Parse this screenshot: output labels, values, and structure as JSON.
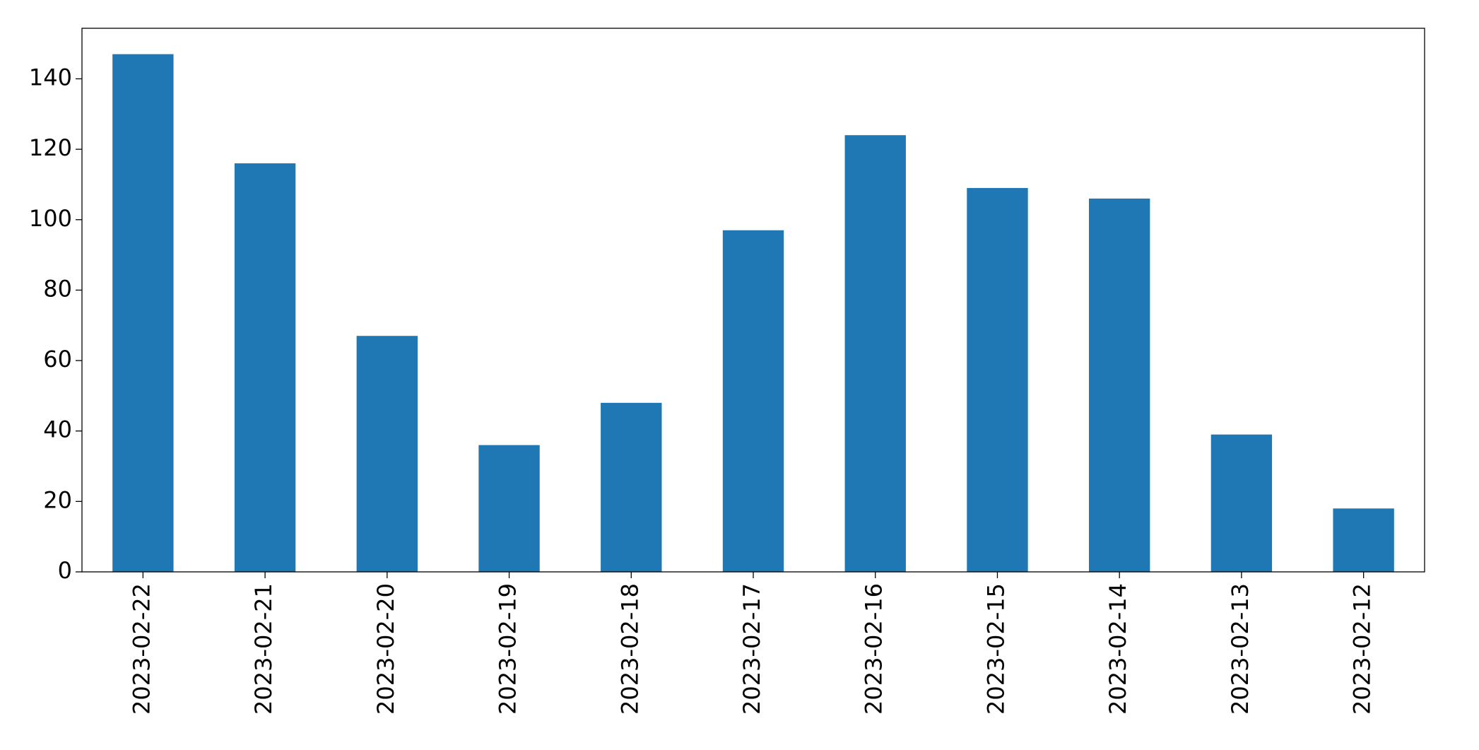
{
  "chart_data": {
    "type": "bar",
    "categories": [
      "2023-02-22",
      "2023-02-21",
      "2023-02-20",
      "2023-02-19",
      "2023-02-18",
      "2023-02-17",
      "2023-02-16",
      "2023-02-15",
      "2023-02-14",
      "2023-02-13",
      "2023-02-12"
    ],
    "values": [
      147,
      116,
      67,
      36,
      48,
      97,
      124,
      109,
      106,
      39,
      18
    ],
    "color": "#1f77b4",
    "ylim": [
      0,
      154.35
    ],
    "yticks": [
      0,
      20,
      40,
      60,
      80,
      100,
      120,
      140
    ],
    "grid": false
  }
}
